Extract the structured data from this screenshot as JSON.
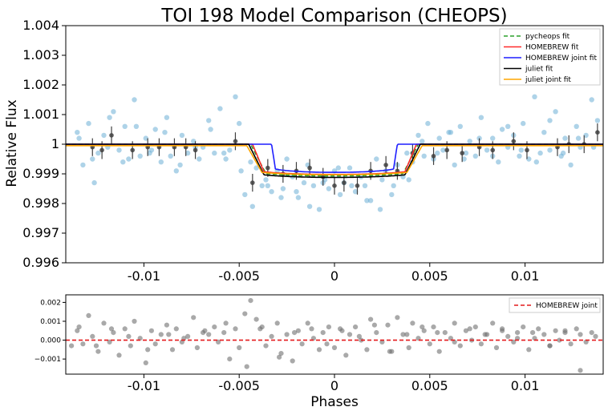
{
  "chart_data": [
    {
      "type": "scatter",
      "title": "TOI 198 Model Comparison (CHEOPS)",
      "xlabel": "",
      "ylabel": "Relative Flux",
      "xlim": [
        -0.0141,
        0.0141
      ],
      "ylim": [
        0.996,
        1.004
      ],
      "xticks": [
        -0.01,
        -0.005,
        0,
        0.005,
        0.01
      ],
      "xtick_labels": [
        "-0.01",
        "-0.005",
        "0",
        "0.005",
        "0.01"
      ],
      "yticks": [
        0.996,
        0.997,
        0.998,
        0.999,
        1.0,
        1.001,
        1.002,
        1.003,
        1.004
      ],
      "ytick_labels": [
        "0.996",
        "0.997",
        "0.998",
        "0.999",
        "1",
        "1.001",
        "1.002",
        "1.003",
        "1.004"
      ],
      "grid": false,
      "legend_position": "top-right",
      "data_points": {
        "color": "#6baed6",
        "x": [
          -0.0135,
          -0.0132,
          -0.0129,
          -0.0127,
          -0.0124,
          -0.0121,
          -0.0119,
          -0.0116,
          -0.0113,
          -0.011,
          -0.0108,
          -0.0105,
          -0.0102,
          -0.0099,
          -0.0097,
          -0.0094,
          -0.0091,
          -0.0088,
          -0.0086,
          -0.0083,
          -0.008,
          -0.0077,
          -0.0074,
          -0.0071,
          -0.0069,
          -0.0066,
          -0.0063,
          -0.006,
          -0.0057,
          -0.0055,
          -0.0052,
          -0.0049,
          -0.0047,
          -0.0044,
          -0.0041,
          -0.0038,
          -0.0036,
          -0.0033,
          -0.003,
          -0.0027,
          -0.0025,
          -0.0022,
          -0.0019,
          -0.0016,
          -0.0014,
          -0.0011,
          -0.0008,
          -0.0005,
          -0.0003,
          0.0,
          0.0003,
          0.0005,
          0.0008,
          0.0011,
          0.0014,
          0.0016,
          0.0019,
          0.0022,
          0.0025,
          0.0027,
          0.003,
          0.0033,
          0.0036,
          0.0038,
          0.0041,
          0.0044,
          0.0047,
          0.0049,
          0.0052,
          0.0055,
          0.0057,
          0.006,
          0.0063,
          0.0066,
          0.0069,
          0.0071,
          0.0074,
          0.0077,
          0.008,
          0.0083,
          0.0086,
          0.0088,
          0.0091,
          0.0094,
          0.0097,
          0.0099,
          0.0102,
          0.0105,
          0.0108,
          0.011,
          0.0113,
          0.0116,
          0.0119,
          0.0121,
          0.0124,
          0.0127,
          0.0129,
          0.0132,
          0.0135,
          0.0138,
          -0.0134,
          -0.0126,
          -0.0118,
          -0.0111,
          -0.0104,
          -0.0096,
          -0.0089,
          -0.0081,
          -0.0073,
          -0.0065,
          -0.0058,
          -0.005,
          -0.0043,
          -0.0035,
          -0.0028,
          -0.002,
          -0.0013,
          -0.0006,
          0.0002,
          0.0009,
          0.0017,
          0.0024,
          0.0031,
          0.0039,
          0.0046,
          0.0054,
          0.0061,
          0.0068,
          0.0076,
          0.0083,
          0.0091,
          0.0098,
          0.0106,
          0.0113,
          0.012,
          0.0128,
          0.0136
        ],
        "y": [
          1.0004,
          0.9993,
          1.0007,
          0.9995,
          0.9997,
          1.0003,
          0.9999,
          1.0011,
          0.9998,
          1.0006,
          0.9995,
          1.0015,
          0.9996,
          1.0002,
          0.9997,
          1.0005,
          0.9994,
          1.0009,
          0.9996,
          0.9991,
          1.0003,
          0.9997,
          1.0001,
          0.9995,
          0.9999,
          1.0008,
          0.9997,
          1.0012,
          0.9995,
          0.9998,
          1.0016,
          0.9991,
          0.9983,
          0.9994,
          0.9992,
          0.9986,
          0.9988,
          0.9984,
          0.9991,
          0.9985,
          0.9995,
          0.9989,
          0.9982,
          0.9987,
          0.9993,
          0.9986,
          0.9978,
          0.9988,
          0.9985,
          0.9991,
          0.9983,
          0.9987,
          0.9992,
          0.9984,
          0.9989,
          0.9986,
          0.9981,
          0.9995,
          0.9988,
          0.9991,
          0.9983,
          0.9993,
          0.9989,
          0.9997,
          0.9994,
          1.0003,
          0.9996,
          1.0007,
          0.9995,
          1.0002,
          0.9998,
          1.0004,
          0.9993,
          1.0006,
          0.9997,
          1.0001,
          0.9996,
          1.0009,
          0.9998,
          1.0002,
          0.9994,
          1.0005,
          0.9999,
          1.0003,
          0.9996,
          1.0007,
          0.9995,
          1.0016,
          0.9997,
          1.0004,
          0.9998,
          1.0011,
          0.9996,
          1.0002,
          0.9993,
          1.0006,
          0.9999,
          1.0003,
          1.0015,
          1.0008,
          1.0002,
          0.9987,
          1.0009,
          0.9994,
          1.0006,
          0.9998,
          1.0004,
          0.9993,
          0.9999,
          1.0005,
          0.9997,
          1.0007,
          0.9979,
          0.9986,
          0.9982,
          0.9984,
          0.9979,
          0.9987,
          0.9992,
          0.9986,
          0.9981,
          0.9978,
          0.9986,
          0.9988,
          1.0001,
          0.9997,
          1.0004,
          0.9995,
          1.0002,
          0.9996,
          1.0006,
          0.9998,
          0.9994,
          1.0008,
          0.9997,
          1.0002,
          0.9999
        ]
      },
      "binned_points": {
        "color": "#404040",
        "x": [
          -0.0127,
          -0.0122,
          -0.0117,
          -0.0106,
          -0.0098,
          -0.0092,
          -0.0084,
          -0.0078,
          -0.0073,
          -0.0052,
          -0.0043,
          -0.0035,
          -0.0027,
          -0.002,
          -0.0013,
          -0.0006,
          0.0,
          0.0005,
          0.0012,
          0.0019,
          0.0027,
          0.0033,
          0.0041,
          0.0052,
          0.0059,
          0.0067,
          0.0076,
          0.0083,
          0.0094,
          0.0101,
          0.0117,
          0.0123,
          0.0131,
          0.0138
        ],
        "y": [
          0.9999,
          0.9998,
          1.0003,
          0.9998,
          0.9999,
          0.9999,
          0.9999,
          0.9999,
          0.9998,
          1.0001,
          0.9987,
          0.9992,
          0.999,
          0.9991,
          0.9992,
          0.9989,
          0.9986,
          0.9987,
          0.9986,
          0.9991,
          0.9993,
          0.9991,
          0.9997,
          0.9996,
          0.9998,
          0.9997,
          0.9999,
          0.9998,
          1.0001,
          0.9998,
          0.9999,
          1.0,
          1.0,
          1.0004
        ],
        "err": [
          0.0003,
          0.0003,
          0.0003,
          0.0003,
          0.0003,
          0.0003,
          0.0003,
          0.0003,
          0.0003,
          0.0003,
          0.0003,
          0.0003,
          0.0003,
          0.0003,
          0.0003,
          0.0003,
          0.0003,
          0.0003,
          0.0003,
          0.0003,
          0.0003,
          0.0003,
          0.0003,
          0.0003,
          0.0003,
          0.0003,
          0.0003,
          0.0003,
          0.0003,
          0.0003,
          0.0003,
          0.0003,
          0.0003,
          0.0003
        ]
      },
      "series": [
        {
          "name": "pycheops fit",
          "color": "#2ca02c",
          "style": "dashed",
          "baseline": 1.0,
          "depth": 0.00107,
          "t_outer": 0.0044,
          "t_inner": 0.0036
        },
        {
          "name": "HOMEBREW fit",
          "color": "#ff2a2a",
          "style": "solid",
          "baseline": 1.0,
          "depth": 0.00102,
          "t_outer": 0.0043,
          "t_inner": 0.0037
        },
        {
          "name": "HOMEBREW joint fit",
          "color": "#1f1fff",
          "style": "solid",
          "baseline": 1.0,
          "depth": 0.00095,
          "t_outer": 0.0033,
          "t_inner": 0.0031
        },
        {
          "name": "juliet fit",
          "color": "#000000",
          "style": "solid",
          "baseline": 1.0,
          "depth": 0.00112,
          "t_outer": 0.0045,
          "t_inner": 0.0037
        },
        {
          "name": "juliet joint fit",
          "color": "#ffa500",
          "style": "solid",
          "baseline": 0.99995,
          "depth": 0.00098,
          "t_outer": 0.0046,
          "t_inner": 0.0038
        }
      ]
    },
    {
      "type": "scatter",
      "title": "",
      "xlabel": "Phases",
      "ylabel": "",
      "xlim": [
        -0.0141,
        0.0141
      ],
      "ylim": [
        -0.0018,
        0.0024
      ],
      "xticks": [
        -0.01,
        -0.005,
        0,
        0.005,
        0.01
      ],
      "xtick_labels": [
        "-0.01",
        "-0.005",
        "0",
        "0.005",
        "0.01"
      ],
      "yticks": [
        -0.001,
        0.0,
        0.001,
        0.002
      ],
      "ytick_labels": [
        "−0.001",
        "0.000",
        "0.001",
        "0.002"
      ],
      "grid": false,
      "legend_position": "top-right",
      "reference_line": {
        "name": "HOMEBREW joint",
        "y": 0.0,
        "color": "#e41a1c",
        "style": "dashed"
      },
      "residuals": {
        "color": "#707070",
        "x": [
          -0.0138,
          -0.0135,
          -0.0132,
          -0.0129,
          -0.0127,
          -0.0124,
          -0.0121,
          -0.0118,
          -0.0116,
          -0.0113,
          -0.011,
          -0.0107,
          -0.0105,
          -0.0102,
          -0.0099,
          -0.0096,
          -0.0094,
          -0.0091,
          -0.0088,
          -0.0085,
          -0.0083,
          -0.008,
          -0.0077,
          -0.0074,
          -0.0072,
          -0.0069,
          -0.0066,
          -0.0063,
          -0.0061,
          -0.0058,
          -0.0055,
          -0.0052,
          -0.005,
          -0.0047,
          -0.0044,
          -0.0041,
          -0.0039,
          -0.0036,
          -0.0033,
          -0.003,
          -0.0028,
          -0.0025,
          -0.0022,
          -0.0019,
          -0.0017,
          -0.0014,
          -0.0011,
          -0.0008,
          -0.0006,
          -0.0003,
          0.0,
          0.0003,
          0.0006,
          0.0008,
          0.0011,
          0.0014,
          0.0017,
          0.0019,
          0.0022,
          0.0025,
          0.0028,
          0.003,
          0.0033,
          0.0036,
          0.0039,
          0.0041,
          0.0044,
          0.0047,
          0.005,
          0.0052,
          0.0055,
          0.0058,
          0.0061,
          0.0063,
          0.0066,
          0.0069,
          0.0072,
          0.0074,
          0.0077,
          0.008,
          0.0083,
          0.0085,
          0.0088,
          0.0091,
          0.0094,
          0.0096,
          0.0099,
          0.0102,
          0.0105,
          0.0107,
          0.011,
          0.0113,
          0.0116,
          0.0118,
          0.0121,
          0.0124,
          0.0127,
          0.0129,
          0.0132,
          0.0135,
          -0.0134,
          -0.0125,
          -0.0117,
          -0.0108,
          -0.0098,
          -0.0087,
          -0.0079,
          -0.0068,
          -0.0057,
          -0.0046,
          -0.0038,
          -0.0029,
          -0.0021,
          -0.0012,
          -0.0004,
          0.0004,
          0.0013,
          0.0021,
          0.0029,
          0.0038,
          0.0046,
          0.0054,
          0.0063,
          0.0071,
          0.0079,
          0.0088,
          0.0096,
          0.0104,
          0.0113,
          0.0121,
          0.0129,
          0.0137
        ],
        "y": [
          -0.0003,
          0.0005,
          -0.0002,
          0.0013,
          0.0002,
          -0.0006,
          0.0009,
          -0.0001,
          0.0004,
          -0.0008,
          0.0006,
          -0.0003,
          0.001,
          0.0001,
          -0.0012,
          0.0005,
          -0.0002,
          0.0003,
          0.0008,
          -0.0005,
          0.0006,
          -0.0001,
          0.0002,
          0.0012,
          -0.0004,
          0.0004,
          0.0003,
          0.0007,
          -0.0001,
          0.0004,
          -0.001,
          0.0006,
          -0.0004,
          0.0014,
          0.0021,
          0.0011,
          0.0006,
          -0.0003,
          0.0002,
          0.0009,
          -0.0007,
          0.0003,
          -0.0011,
          0.0005,
          -0.0002,
          0.0009,
          0.0001,
          -0.0005,
          0.0004,
          0.0007,
          -0.0004,
          0.0006,
          -0.0008,
          0.0003,
          0.0007,
          0.0,
          -0.0005,
          0.0011,
          0.0004,
          -0.0001,
          0.0008,
          -0.0006,
          0.0012,
          0.0003,
          -0.0004,
          0.0009,
          0.0001,
          0.0005,
          -0.0002,
          0.0007,
          -0.0006,
          0.0004,
          0.0001,
          0.0009,
          -0.0003,
          0.0005,
          0.0,
          0.0007,
          -0.0002,
          0.0003,
          0.0009,
          -0.0004,
          0.0006,
          0.0002,
          -0.0001,
          0.0004,
          0.0007,
          -0.0005,
          0.0001,
          0.0006,
          0.0003,
          -0.0003,
          0.0005,
          0.0,
          0.0004,
          -0.0002,
          0.0006,
          0.0003,
          -0.0001,
          0.0004,
          0.0007,
          -0.0003,
          0.0006,
          0.0002,
          -0.0005,
          0.0003,
          0.0001,
          0.0005,
          0.0009,
          -0.0014,
          0.0007,
          -0.0009,
          0.0004,
          0.0006,
          -0.0002,
          0.0005,
          0.0002,
          0.0008,
          -0.0006,
          0.0003,
          0.0007,
          0.0004,
          -0.0001,
          0.0006,
          0.0003,
          0.0005,
          0.0001,
          0.0004,
          -0.0003,
          0.0005,
          -0.0016,
          0.0002
        ]
      }
    }
  ]
}
